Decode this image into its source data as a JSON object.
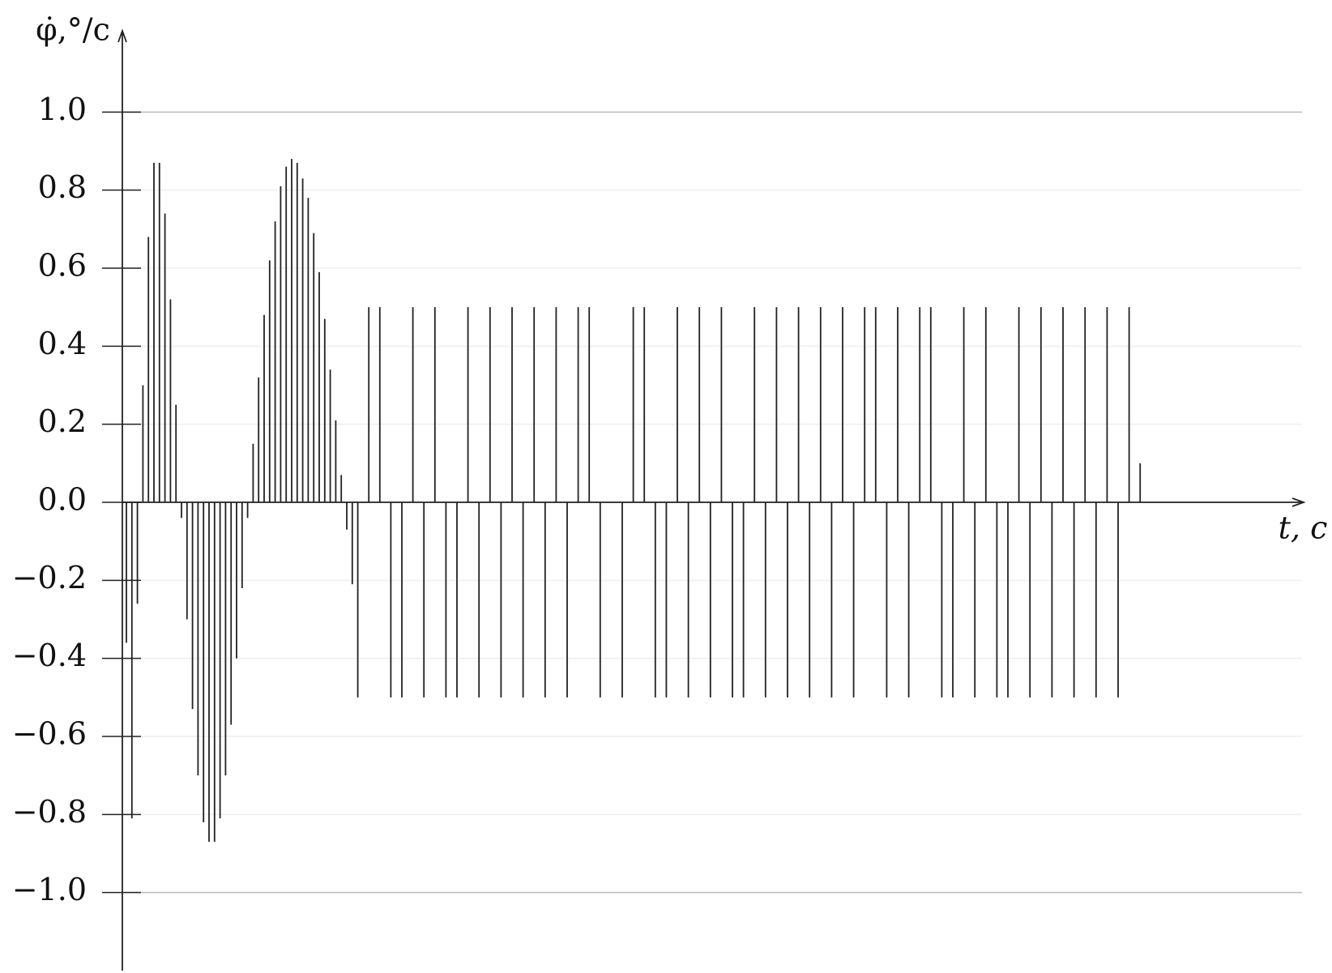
{
  "chart_data": {
    "type": "stem",
    "x_label": "t, с",
    "y_label": "φ̇,°/с",
    "values": [
      -0.36,
      -0.81,
      -0.26,
      0.3,
      0.68,
      0.87,
      0.87,
      0.74,
      0.52,
      0.25,
      -0.04,
      -0.3,
      -0.53,
      -0.7,
      -0.82,
      -0.87,
      -0.87,
      -0.81,
      -0.7,
      -0.57,
      -0.4,
      -0.22,
      -0.04,
      0.15,
      0.32,
      0.48,
      0.62,
      0.72,
      0.81,
      0.86,
      0.88,
      0.87,
      0.83,
      0.78,
      0.69,
      0.59,
      0.47,
      0.34,
      0.21,
      0.07,
      -0.07,
      -0.21,
      -0.5,
      0,
      0.5,
      0,
      0.5,
      0,
      -0.5,
      0,
      -0.5,
      0,
      0.5,
      0,
      -0.5,
      0,
      0.5,
      0,
      -0.5,
      0,
      -0.5,
      0,
      0.5,
      0,
      -0.5,
      0,
      0.5,
      0,
      -0.5,
      0,
      0.5,
      0,
      -0.5,
      0,
      0.5,
      0,
      -0.5,
      0,
      0.5,
      0,
      -0.5,
      0,
      0.5,
      0,
      0.5,
      0,
      -0.5,
      0,
      0,
      0,
      -0.5,
      0,
      0.5,
      0,
      0.5,
      0,
      -0.5,
      0,
      -0.5,
      0,
      0.5,
      0,
      -0.5,
      0,
      0.5,
      0,
      -0.5,
      0,
      0.5,
      0,
      -0.5,
      0,
      -0.5,
      0,
      0.5,
      0,
      -0.5,
      0,
      0.5,
      0,
      -0.5,
      0,
      0.5,
      0,
      -0.5,
      0,
      0.5,
      0,
      -0.5,
      0,
      0.5,
      0,
      -0.5,
      0,
      0.5,
      0,
      0.5,
      0,
      -0.5,
      0,
      0.5,
      0,
      -0.5,
      0,
      0.5,
      0,
      0.5,
      0,
      -0.5,
      0,
      -0.5,
      0,
      0.5,
      0,
      -0.5,
      0,
      0.5,
      0,
      -0.5,
      0,
      -0.5,
      0,
      0.5,
      0,
      -0.5,
      0,
      0.5,
      0,
      -0.5,
      0,
      0.5,
      0,
      -0.5,
      0,
      0.5,
      0,
      -0.5,
      0,
      0.5,
      0,
      -0.5,
      0,
      0.5,
      0,
      0.1
    ],
    "color": "#222222",
    "ylim": [
      -1.2,
      1.2
    ],
    "yticks": [
      {
        "value": -1.0,
        "label": "−1.0"
      },
      {
        "value": -0.8,
        "label": "−0.8"
      },
      {
        "value": -0.6,
        "label": "−0.6"
      },
      {
        "value": -0.4,
        "label": "−0.4"
      },
      {
        "value": -0.2,
        "label": "−0.2"
      },
      {
        "value": 0.0,
        "label": "0.0"
      },
      0.2,
      0.4,
      0.6,
      0.8,
      {
        "value": 1.0,
        "label": "1.0"
      }
    ],
    "grid": true
  }
}
